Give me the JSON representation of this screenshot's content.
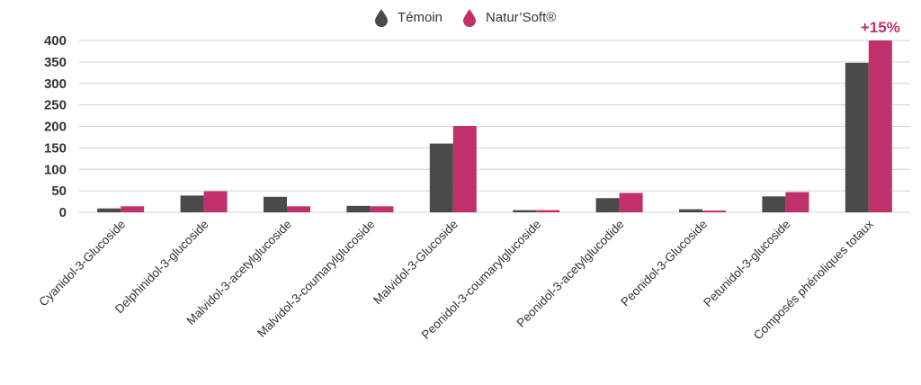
{
  "chart_data": {
    "type": "bar",
    "categories": [
      "Cyanidol-3-Glucoside",
      "Delphinidol-3-glucoside",
      "Malvidol-3-acetylglucoside",
      "Malvidol-3-coumarylglucoside",
      "Malvidol-3-Glucoside",
      "Peonidol-3-coumarylglucoside",
      "Peonidol-3-acetylglucodide",
      "Peonidol-3-Glucoside",
      "Petunidol-3-glucoside",
      "Composés phénoliques totaux"
    ],
    "series": [
      {
        "name": "Témoin",
        "color": "#4a4a4a",
        "values": [
          9,
          39,
          36,
          15,
          160,
          5,
          33,
          7,
          37,
          348
        ]
      },
      {
        "name": "Natur’Soft®",
        "color": "#c0306b",
        "values": [
          14,
          49,
          14,
          14,
          201,
          5,
          45,
          4,
          47,
          400
        ]
      }
    ],
    "ylim": [
      0,
      400
    ],
    "yticks": [
      0,
      50,
      100,
      150,
      200,
      250,
      300,
      350,
      400
    ],
    "grid": true,
    "legend_position": "top-center",
    "annotations": [
      {
        "text": "+15%",
        "category_index": 9,
        "series_index": 1,
        "color": "#c0306b"
      }
    ]
  }
}
